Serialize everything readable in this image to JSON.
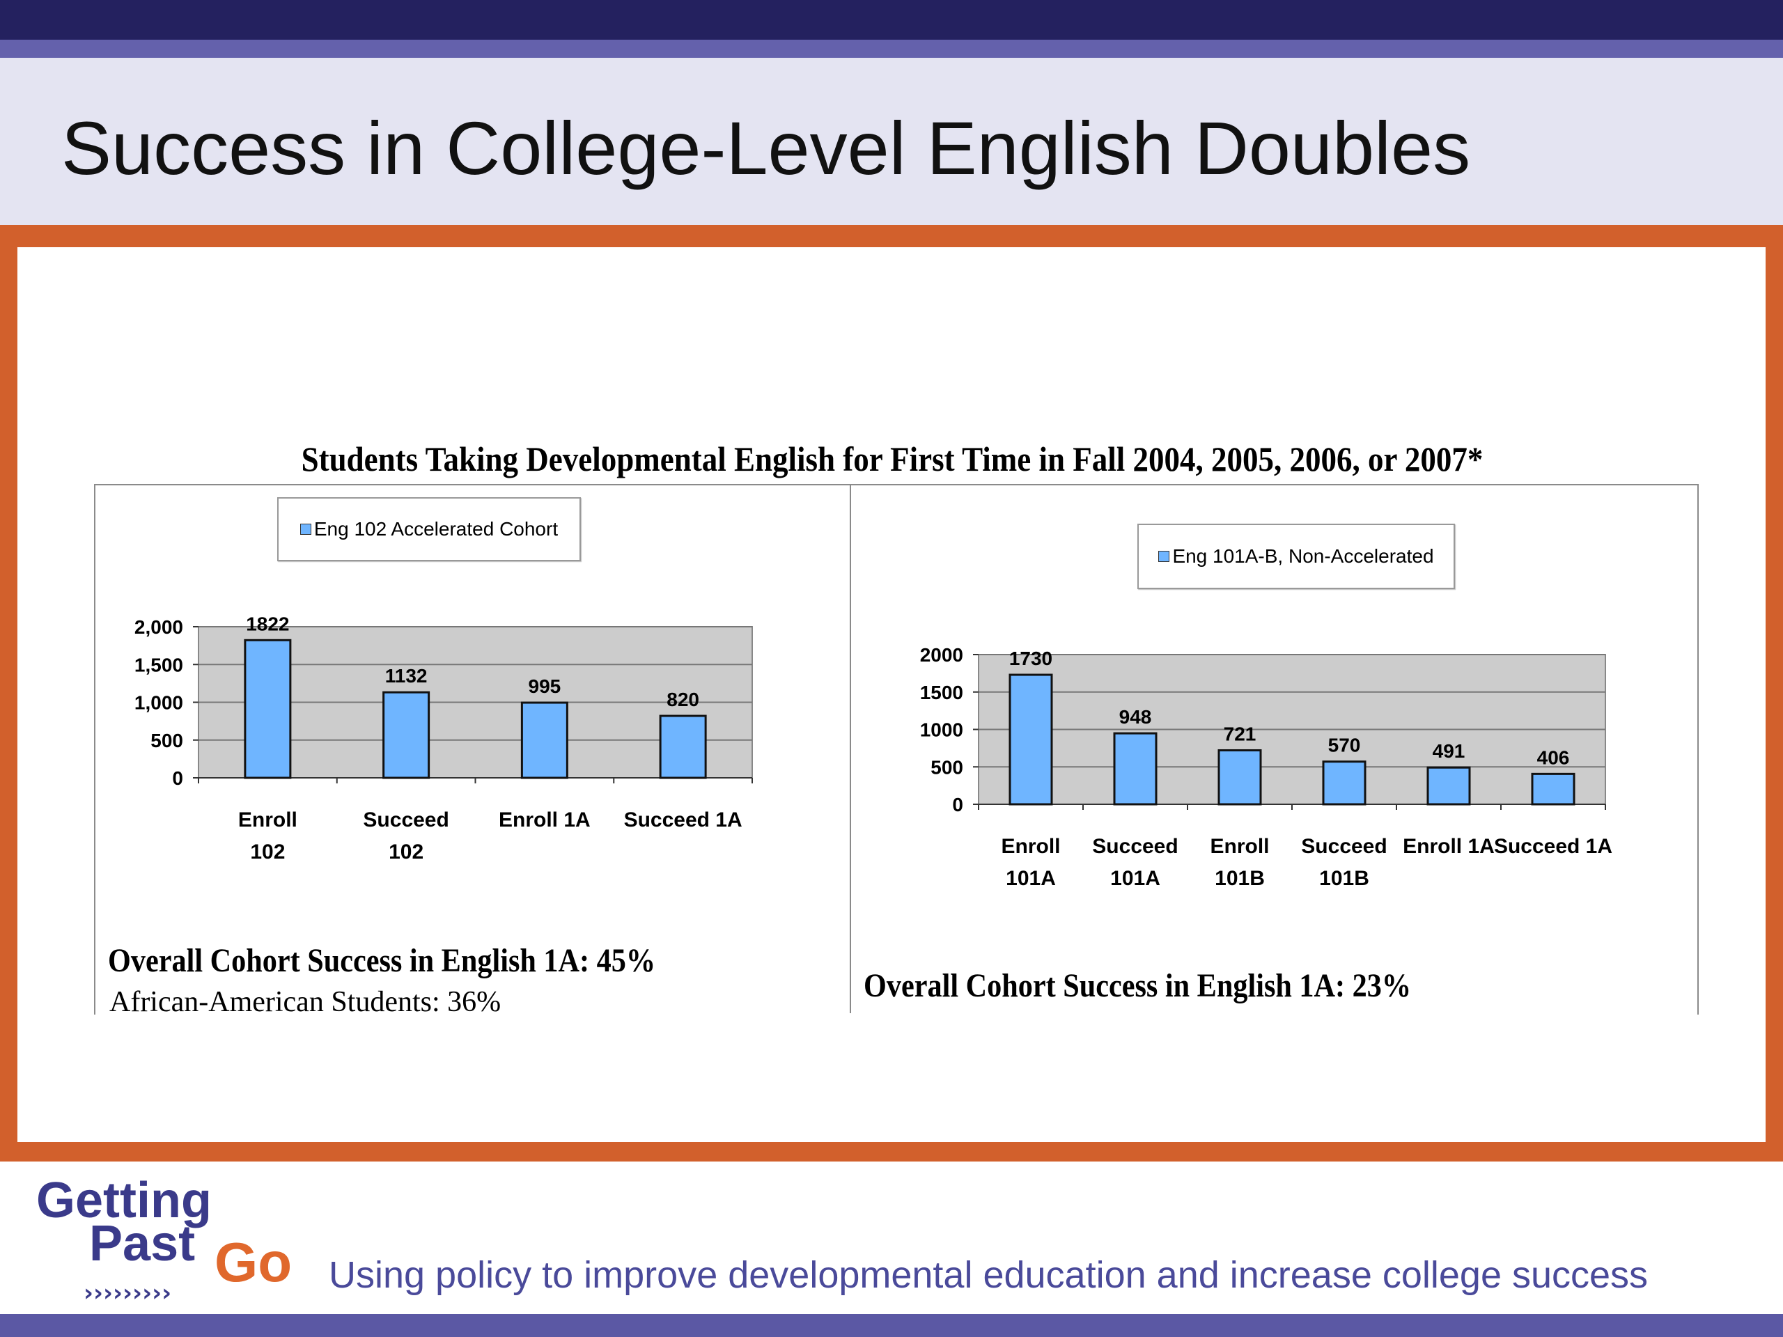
{
  "slide": {
    "title": "Success in College-Level English Doubles",
    "tagline": "Using policy to improve developmental education and increase college success",
    "logo": {
      "line1": "Getting",
      "line2": "Past",
      "line3": "Go"
    }
  },
  "colors": {
    "header_dark": "#24215f",
    "header_mid": "#6461ac",
    "frame": "#d2602c",
    "bar": "#6fb5ff",
    "plot_bg": "#cccccc"
  },
  "figure": {
    "title": "Students Taking Developmental English for First Time in Fall 2004, 2005, 2006, or 2007*",
    "left_summary": "Overall Cohort Success in English 1A: 45%",
    "left_sub": "African-American Students: 36%",
    "right_summary": "Overall Cohort Success in English 1A: 23%"
  },
  "chart_data": [
    {
      "type": "bar",
      "title": "",
      "legend": [
        "Eng 102 Accelerated Cohort"
      ],
      "categories": [
        "Enroll 102",
        "Succeed 102",
        "Enroll 1A",
        "Succeed 1A"
      ],
      "series": [
        {
          "name": "Eng 102 Accelerated Cohort",
          "values": [
            1822,
            1132,
            995,
            820
          ]
        }
      ],
      "ylim": [
        0,
        2000
      ],
      "yticks": [
        "0",
        "500",
        "1,000",
        "1,500",
        "2,000"
      ],
      "grid": true
    },
    {
      "type": "bar",
      "title": "",
      "legend": [
        "Eng 101A-B, Non-Accelerated"
      ],
      "categories": [
        "Enroll 101A",
        "Succeed 101A",
        "Enroll 101B",
        "Succeed 101B",
        "Enroll 1A",
        "Succeed 1A"
      ],
      "series": [
        {
          "name": "Eng 101A-B, Non-Accelerated",
          "values": [
            1730,
            948,
            721,
            570,
            491,
            406
          ]
        }
      ],
      "ylim": [
        0,
        2000
      ],
      "yticks": [
        "0",
        "500",
        "1000",
        "1500",
        "2000"
      ],
      "grid": true
    }
  ]
}
